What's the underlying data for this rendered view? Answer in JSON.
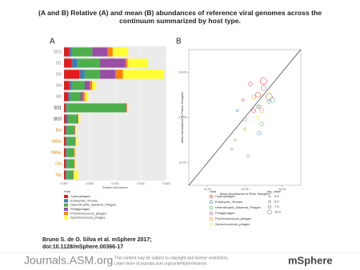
{
  "title": "(A and B) Relative (A) and mean (B) abundances of reference viral genomes across the continuum summarized by host type.",
  "citation": {
    "line1": "Bruno S. de O. Silva et al. mSphere 2017;",
    "line2": "doi:10.1128/mSphere.00366-17"
  },
  "footer": {
    "brand": "Journals.ASM.org",
    "notice1": "This content may be subject to copyright and license restrictions.",
    "notice2": "Learn more at journals.asm.org/content/permissions",
    "journal": "mSphere"
  },
  "chart_data": [
    {
      "type": "bar",
      "orientation": "horizontal",
      "stacked": true,
      "panel": "A",
      "x_label": "Relative Abundance",
      "legend_title": "Host",
      "categories": [
        "St15",
        "St1",
        "St3",
        "St4",
        "St6",
        "St11",
        "St10",
        "Bel",
        "SMac",
        "NMac",
        "Obi",
        "Tap"
      ],
      "category_label_colors": [
        "#888",
        "#888",
        "#888",
        "#888",
        "#888",
        "#111",
        "#111",
        "#d4870e",
        "#d4870e",
        "#d4870e",
        "#d4870e",
        "#d4870e"
      ],
      "xlim": [
        0,
        0.02
      ],
      "xticks": [
        {
          "value": 0,
          "label": "0.000"
        },
        {
          "value": 0.005,
          "label": "0.005"
        },
        {
          "value": 0.01,
          "label": "0.010"
        },
        {
          "value": 0.015,
          "label": "0.015"
        },
        {
          "value": 0.02,
          "label": "0.020"
        }
      ],
      "series": [
        {
          "name": "Cyanophages",
          "color": "#e41a1c",
          "values": [
            0.001,
            0.0015,
            0.003,
            0.001,
            0.0008,
            0.0003,
            0.0004,
            0.0003,
            0.0003,
            0.0003,
            0.0003,
            0.0003
          ]
        },
        {
          "name": "Eukaryotic_Viruses",
          "color": "#377eb8",
          "values": [
            0.0005,
            0.001,
            0.001,
            0.0005,
            0.0004,
            0.0002,
            0.0003,
            0.0002,
            0.0002,
            0.0002,
            0.0002,
            0.0002
          ]
        },
        {
          "name": "Heterotrophic_Bacteria_Phages",
          "color": "#4daf4a",
          "values": [
            0.004,
            0.0045,
            0.003,
            0.0025,
            0.002,
            0.0115,
            0.0018,
            0.0015,
            0.0016,
            0.0014,
            0.0014,
            0.0012
          ]
        },
        {
          "name": "Pelagiphages",
          "color": "#984ea3",
          "values": [
            0.003,
            0.005,
            0.003,
            0.001,
            0.0005,
            0.0002,
            0.0002,
            0.0001,
            0.0001,
            0.0001,
            0.0001,
            0.0001
          ]
        },
        {
          "name": "Prochlorococcus_phages",
          "color": "#ff7f00",
          "values": [
            0.001,
            0.0004,
            0.0015,
            0.0005,
            0.0004,
            0.0001,
            0.0001,
            0.0001,
            0.0001,
            0.0001,
            0.0001,
            0.0001
          ]
        },
        {
          "name": "Synechococcus_phages",
          "color": "#ffff33",
          "values": [
            0.003,
            0.004,
            0.008,
            0.0007,
            0.0006,
            0.0002,
            0.0002,
            0.0002,
            0.0003,
            0.0002,
            0.0002,
            0.0008
          ]
        }
      ]
    },
    {
      "type": "scatter",
      "panel": "B",
      "log_scale": true,
      "x_label": "Mean Abundance in River Samples",
      "y_label": "Mean Abundance in Plume Samples",
      "legend_title": "Host",
      "xlim": [
        1e-08,
        0.01
      ],
      "ylim": [
        1e-08,
        0.01
      ],
      "xticks": [
        {
          "value": 1e-07,
          "label": "1e-07"
        },
        {
          "value": 1e-05,
          "label": "1e-05"
        },
        {
          "value": 0.001,
          "label": "1e-03"
        }
      ],
      "yticks": [
        {
          "value": 1e-07,
          "label": "1e-07"
        },
        {
          "value": 1e-05,
          "label": "1e-05"
        },
        {
          "value": 0.001,
          "label": "1e-03"
        }
      ],
      "size_legend": {
        "title": "log_value",
        "values": [
          2.5,
          {
            "value": 5,
            "label": "5.0"
          },
          7.5,
          {
            "value": 10,
            "label": "10.0"
          }
        ]
      },
      "series": [
        {
          "name": "Cyanophages",
          "color": "#e41a1c",
          "x": [
            2e-05,
            5e-05,
            0.0001,
            3e-05,
            8e-06
          ],
          "y": [
            0.0003,
            0.0001,
            0.0004,
            2e-05,
            6e-05
          ],
          "sizes": [
            5,
            7.5,
            10,
            5,
            2.5
          ]
        },
        {
          "name": "Eukaryotic_Viruses",
          "color": "#377eb8",
          "x": [
            1e-05,
            4e-06,
            6e-05,
            0.0002
          ],
          "y": [
            3e-06,
            2e-05,
            2e-06,
            5e-05
          ],
          "sizes": [
            2.5,
            2.5,
            5,
            5
          ]
        },
        {
          "name": "Heterotrophic_Bacteria_Phages",
          "color": "#4daf4a",
          "x": [
            3e-06,
            1e-05,
            5e-05,
            2e-06,
            8e-05,
            0.0003,
            1.5e-05
          ],
          "y": [
            1e-06,
            8e-06,
            3e-05,
            4e-07,
            5e-06,
            6e-05,
            2e-07
          ],
          "sizes": [
            2.5,
            5,
            5,
            2.5,
            5,
            7.5,
            2.5
          ]
        },
        {
          "name": "Pelagiphages",
          "color": "#984ea3",
          "x": [
            0.0001,
            0.0002,
            6e-05
          ],
          "y": [
            0.0002,
            8e-05,
            3e-05
          ],
          "sizes": [
            7.5,
            10,
            5
          ]
        },
        {
          "name": "Prochlorococcus_phages",
          "color": "#ff7f00",
          "x": [
            3e-05,
            8e-05
          ],
          "y": [
            8e-05,
            2e-05
          ],
          "sizes": [
            5,
            5
          ]
        },
        {
          "name": "Synechococcus_phages",
          "color": "#e6e62e",
          "x": [
            5e-05,
            0.0002,
            1e-05
          ],
          "y": [
            1e-05,
            0.0001,
            3e-06
          ],
          "sizes": [
            5,
            7.5,
            2.5
          ]
        }
      ]
    }
  ]
}
